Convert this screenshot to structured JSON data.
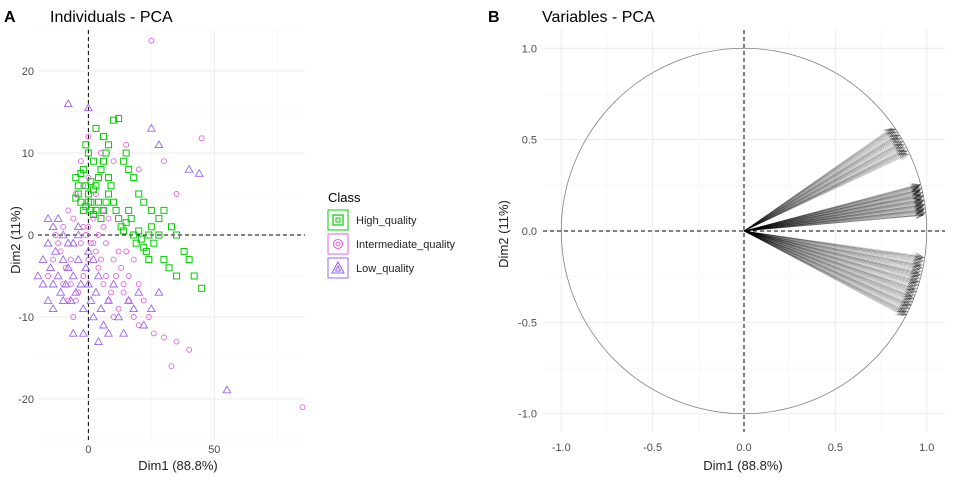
{
  "chart_data": [
    {
      "panel": "A",
      "type": "scatter",
      "title": "Individuals - PCA",
      "xlabel": "Dim1 (88.8%)",
      "ylabel": "Dim2 (11%)",
      "xlim": [
        -20,
        86
      ],
      "ylim": [
        -25,
        25
      ],
      "xticks": [
        0,
        50
      ],
      "yticks": [
        -20,
        -10,
        0,
        10,
        20
      ],
      "grid": true,
      "reference_lines": {
        "x": 0,
        "y": 0,
        "style": "dashed"
      },
      "legend": {
        "title": "Class",
        "placement": "right",
        "entries": [
          {
            "label": "High_quality",
            "color": "#00cc00",
            "shape": "square"
          },
          {
            "label": "Intermediate_quality",
            "color": "#dd66dd",
            "shape": "circle"
          },
          {
            "label": "Low_quality",
            "color": "#9966ee",
            "shape": "triangle"
          }
        ]
      },
      "series": [
        {
          "name": "High_quality",
          "color": "#00cc00",
          "shape": "square",
          "points": [
            [
              -5,
              7
            ],
            [
              -4,
              6
            ],
            [
              -3,
              7.5
            ],
            [
              -2,
              8
            ],
            [
              -1,
              6
            ],
            [
              0,
              5
            ],
            [
              1,
              4
            ],
            [
              2,
              5.5
            ],
            [
              3,
              6
            ],
            [
              4,
              7
            ],
            [
              5,
              8
            ],
            [
              6,
              9
            ],
            [
              7,
              10
            ],
            [
              8,
              11
            ],
            [
              10,
              14
            ],
            [
              12,
              14.2
            ],
            [
              14,
              9
            ],
            [
              15,
              10
            ],
            [
              16,
              8
            ],
            [
              18,
              7
            ],
            [
              20,
              5
            ],
            [
              22,
              4
            ],
            [
              25,
              3
            ],
            [
              28,
              2
            ],
            [
              30,
              3
            ],
            [
              33,
              1
            ],
            [
              35,
              0
            ],
            [
              38,
              -2
            ],
            [
              40,
              -3
            ],
            [
              42,
              -5
            ],
            [
              45,
              -6.5
            ],
            [
              -3,
              4
            ],
            [
              -2,
              3
            ],
            [
              -1,
              3.5
            ],
            [
              0,
              4
            ],
            [
              1,
              3
            ],
            [
              2,
              2.5
            ],
            [
              3,
              3
            ],
            [
              4,
              4
            ],
            [
              5,
              2
            ],
            [
              6,
              3
            ],
            [
              7,
              4
            ],
            [
              8,
              5
            ],
            [
              9,
              6
            ],
            [
              10,
              4
            ],
            [
              11,
              3
            ],
            [
              12,
              2
            ],
            [
              13,
              1
            ],
            [
              14,
              0.5
            ],
            [
              15,
              1.5
            ],
            [
              16,
              3
            ],
            [
              17,
              2
            ],
            [
              18,
              0
            ],
            [
              19,
              -1
            ],
            [
              20,
              0.5
            ],
            [
              21,
              -0.5
            ],
            [
              22,
              -1.5
            ],
            [
              23,
              -2
            ],
            [
              24,
              0
            ],
            [
              25,
              1
            ],
            [
              -1,
              11
            ],
            [
              0,
              10
            ],
            [
              3,
              13
            ],
            [
              2,
              9
            ],
            [
              6,
              12
            ],
            [
              8,
              7
            ],
            [
              1,
              6.5
            ],
            [
              -4,
              5
            ],
            [
              -5,
              4.5
            ],
            [
              30,
              -3
            ],
            [
              32,
              -4
            ],
            [
              35,
              -5
            ],
            [
              28,
              0
            ],
            [
              26,
              -1
            ],
            [
              24,
              -3
            ]
          ]
        },
        {
          "name": "Intermediate_quality",
          "color": "#dd66dd",
          "shape": "circle",
          "points": [
            [
              25,
              23.7
            ],
            [
              45,
              11.8
            ],
            [
              30,
              9
            ],
            [
              35,
              5
            ],
            [
              20,
              8
            ],
            [
              15,
              11
            ],
            [
              10,
              9
            ],
            [
              5,
              10
            ],
            [
              0,
              12
            ],
            [
              -3,
              9
            ],
            [
              -5,
              5
            ],
            [
              -8,
              3
            ],
            [
              -10,
              1
            ],
            [
              -12,
              -1
            ],
            [
              -14,
              -3
            ],
            [
              -16,
              -5
            ],
            [
              -10,
              -6
            ],
            [
              -8,
              -8
            ],
            [
              -6,
              -10
            ],
            [
              -4,
              -7
            ],
            [
              -2,
              -5
            ],
            [
              0,
              -3
            ],
            [
              2,
              -1
            ],
            [
              4,
              -4
            ],
            [
              6,
              -6
            ],
            [
              8,
              -8
            ],
            [
              10,
              -10
            ],
            [
              12,
              -9
            ],
            [
              14,
              -7
            ],
            [
              16,
              -5
            ],
            [
              18,
              -3
            ],
            [
              20,
              -6
            ],
            [
              22,
              -8
            ],
            [
              24,
              -10
            ],
            [
              26,
              -12
            ],
            [
              30,
              -12.5
            ],
            [
              35,
              -13
            ],
            [
              40,
              -14
            ],
            [
              33,
              -16
            ],
            [
              85,
              -21
            ],
            [
              0,
              1
            ],
            [
              1,
              -1
            ],
            [
              -1,
              0
            ],
            [
              2,
              2
            ],
            [
              3,
              -2
            ],
            [
              -2,
              1
            ],
            [
              4,
              0
            ],
            [
              -3,
              -1
            ],
            [
              5,
              -3
            ],
            [
              6,
              1
            ],
            [
              7,
              -1
            ],
            [
              8,
              2
            ],
            [
              -6,
              2
            ],
            [
              -7,
              -3
            ],
            [
              -9,
              -4
            ],
            [
              -11,
              -2
            ],
            [
              -13,
              0
            ],
            [
              10,
              -3
            ],
            [
              11,
              -5
            ],
            [
              12,
              -2
            ],
            [
              13,
              -4
            ],
            [
              14,
              -6
            ],
            [
              15,
              -2
            ],
            [
              16,
              -8
            ],
            [
              18,
              -10
            ],
            [
              20,
              -11
            ],
            [
              9,
              -7
            ],
            [
              7,
              -5
            ],
            [
              -5,
              -8
            ],
            [
              -7,
              -6
            ],
            [
              3,
              5
            ],
            [
              6,
              3
            ],
            [
              -2,
              6
            ],
            [
              0,
              7
            ]
          ]
        },
        {
          "name": "Low_quality",
          "color": "#9966ee",
          "shape": "triangle",
          "points": [
            [
              -8,
              16
            ],
            [
              0,
              15.5
            ],
            [
              25,
              13
            ],
            [
              28,
              11
            ],
            [
              40,
              8
            ],
            [
              44,
              7.5
            ],
            [
              -20,
              -5
            ],
            [
              -18,
              -3
            ],
            [
              -16,
              -1
            ],
            [
              -15,
              -4
            ],
            [
              -14,
              -6
            ],
            [
              -13,
              -2
            ],
            [
              -12,
              -5
            ],
            [
              -11,
              -7
            ],
            [
              -10,
              -3
            ],
            [
              -9,
              -6
            ],
            [
              -8,
              -4
            ],
            [
              -7,
              -8
            ],
            [
              -6,
              -5
            ],
            [
              -5,
              -7
            ],
            [
              -4,
              -3
            ],
            [
              -3,
              -6
            ],
            [
              -2,
              -9
            ],
            [
              -1,
              -4
            ],
            [
              0,
              -6
            ],
            [
              1,
              -8
            ],
            [
              2,
              -10
            ],
            [
              3,
              -7
            ],
            [
              4,
              -5
            ],
            [
              5,
              -9
            ],
            [
              6,
              -11
            ],
            [
              8,
              -8
            ],
            [
              10,
              -6
            ],
            [
              12,
              -10
            ],
            [
              14,
              -12
            ],
            [
              16,
              -8
            ],
            [
              18,
              -9
            ],
            [
              20,
              -7
            ],
            [
              22,
              -11
            ],
            [
              25,
              -9
            ],
            [
              28,
              -7
            ],
            [
              -12,
              2
            ],
            [
              -14,
              1
            ],
            [
              -16,
              2
            ],
            [
              -10,
              0
            ],
            [
              -6,
              -1
            ],
            [
              -4,
              0
            ],
            [
              0,
              -2
            ],
            [
              2,
              -3
            ],
            [
              55,
              -18.9
            ],
            [
              -4,
              1
            ],
            [
              -8,
              -1
            ],
            [
              -10,
              -8
            ],
            [
              -6,
              -12
            ],
            [
              -2,
              -12
            ],
            [
              4,
              -13
            ],
            [
              8,
              -12
            ],
            [
              -18,
              -6
            ],
            [
              -16,
              -8
            ],
            [
              -14,
              -9
            ]
          ]
        }
      ]
    },
    {
      "panel": "B",
      "type": "line",
      "title": "Variables - PCA",
      "xlabel": "Dim1 (88.8%)",
      "ylabel": "Dim2 (11%)",
      "xlim": [
        -1.1,
        1.1
      ],
      "ylim": [
        -1.1,
        1.1
      ],
      "xticks": [
        -1.0,
        -0.5,
        0.0,
        0.5,
        1.0
      ],
      "yticks": [
        -1.0,
        -0.5,
        0.0,
        0.5,
        1.0
      ],
      "grid": true,
      "reference_lines": {
        "x": 0,
        "y": 0,
        "style": "dashed"
      },
      "circle": {
        "radius": 1
      },
      "arrow_groups": [
        {
          "angle_from_deg": 35,
          "angle_to_deg": 25,
          "count": 28,
          "length_from": 0.98,
          "length_to": 1.0
        },
        {
          "angle_from_deg": 15,
          "angle_to_deg": 5,
          "count": 45,
          "length_from": 0.98,
          "length_to": 1.0
        },
        {
          "angle_from_deg": -8,
          "angle_to_deg": -28,
          "count": 55,
          "length_from": 0.98,
          "length_to": 1.0
        }
      ]
    }
  ]
}
